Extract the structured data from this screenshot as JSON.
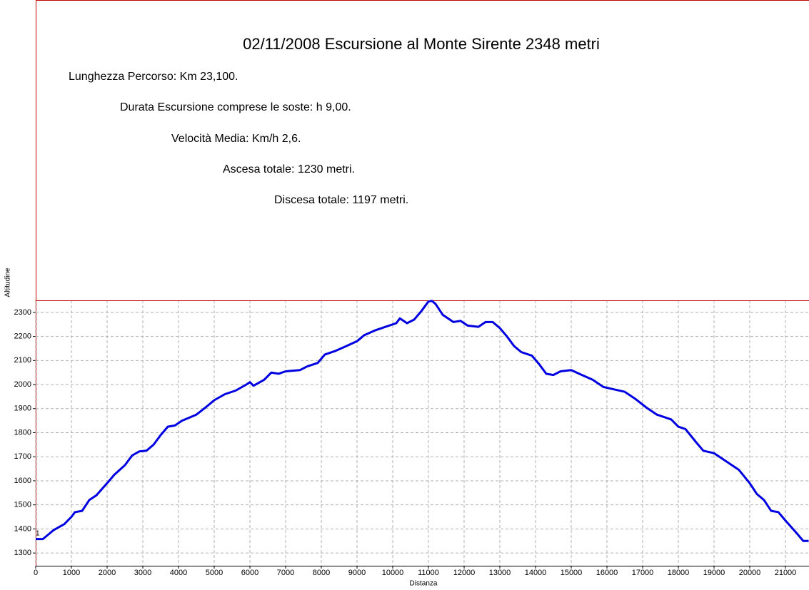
{
  "chart_data": {
    "type": "line",
    "title": "02/11/2008 Escursione al Monte Sirente 2348 metri",
    "annotations": [
      "Lunghezza Percorso: Km 23,100.",
      "Durata Escursione comprese le soste: h 9,00.",
      "Velocità Media: Km/h 2,6.",
      "Ascesa totale: 1230 metri.",
      "Discesa totale: 1197 metri.",
      "1"
    ],
    "x_label": "Distanza",
    "y_label": "Altitudine",
    "x": [
      0,
      200,
      300,
      500,
      800,
      1000,
      1100,
      1300,
      1500,
      1700,
      2000,
      2200,
      2500,
      2700,
      2900,
      3100,
      3300,
      3500,
      3700,
      3900,
      4100,
      4500,
      4800,
      5000,
      5300,
      5600,
      5900,
      6000,
      6100,
      6400,
      6600,
      6800,
      7000,
      7400,
      7600,
      7900,
      8100,
      8400,
      8700,
      9000,
      9200,
      9500,
      9800,
      10100,
      10200,
      10400,
      10600,
      10800,
      11000,
      11100,
      11200,
      11400,
      11700,
      11900,
      12100,
      12400,
      12600,
      12800,
      13000,
      13200,
      13400,
      13600,
      13900,
      14100,
      14300,
      14500,
      14700,
      15000,
      15300,
      15600,
      15900,
      16200,
      16500,
      16800,
      17100,
      17400,
      17800,
      18000,
      18200,
      18500,
      18700,
      19000,
      19300,
      19700,
      20000,
      20200,
      20400,
      20600,
      20800,
      21000,
      21300,
      21500,
      21650
    ],
    "series": [
      {
        "color": "#0000e0",
        "values": [
          1358,
          1358,
          1370,
          1395,
          1420,
          1450,
          1470,
          1475,
          1520,
          1540,
          1590,
          1625,
          1665,
          1705,
          1722,
          1725,
          1750,
          1790,
          1825,
          1830,
          1850,
          1875,
          1910,
          1935,
          1960,
          1975,
          2000,
          2010,
          1995,
          2020,
          2050,
          2045,
          2055,
          2060,
          2075,
          2090,
          2125,
          2140,
          2160,
          2180,
          2205,
          2225,
          2240,
          2255,
          2275,
          2255,
          2270,
          2305,
          2345,
          2348,
          2335,
          2290,
          2260,
          2265,
          2245,
          2240,
          2260,
          2260,
          2235,
          2200,
          2160,
          2135,
          2120,
          2085,
          2045,
          2040,
          2055,
          2060,
          2040,
          2020,
          1990,
          1980,
          1970,
          1940,
          1905,
          1875,
          1855,
          1825,
          1815,
          1760,
          1725,
          1715,
          1685,
          1645,
          1590,
          1545,
          1520,
          1475,
          1470,
          1435,
          1385,
          1350,
          1350
        ]
      }
    ],
    "xlim": [
      0,
      21660
    ],
    "ylim": [
      1247,
      2350
    ],
    "xticks": [
      0,
      1000,
      2000,
      3000,
      4000,
      5000,
      6000,
      7000,
      8000,
      9000,
      10000,
      11000,
      12000,
      13000,
      14000,
      15000,
      16000,
      17000,
      18000,
      19000,
      20000,
      21000
    ],
    "yticks": [
      1300,
      1400,
      1500,
      1600,
      1700,
      1800,
      1900,
      2000,
      2100,
      2200,
      2300
    ],
    "grid": true
  }
}
